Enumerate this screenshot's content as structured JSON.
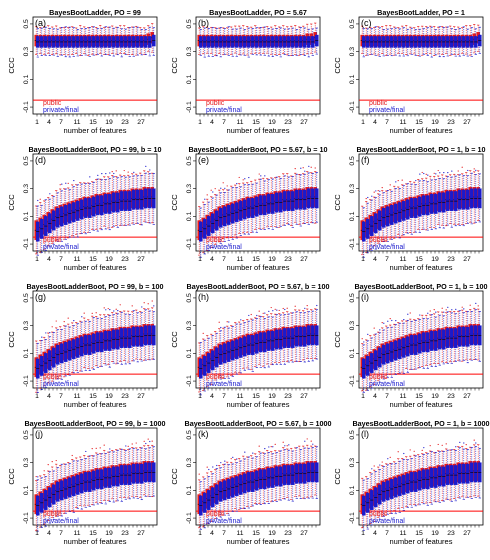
{
  "colors": {
    "public": "#e41a1c",
    "private": "#1a1acc",
    "reference_line": "#ff0000",
    "axis": "#000000"
  },
  "shared": {
    "xlabel": "number of features",
    "ylabel": "CCC",
    "x_ticks": [
      "1",
      "4",
      "7",
      "11",
      "15",
      "19",
      "23",
      "27"
    ],
    "y_ticks": [
      "-0.1",
      "0.1",
      "0.3",
      "0.5"
    ],
    "legend": [
      "public",
      "private/final"
    ]
  },
  "chart_data": [
    {
      "type": "box",
      "panel": "(a)",
      "title": "BayesBootLadder, PO = 99",
      "xlim": [
        1,
        30
      ],
      "ylim": [
        -0.15,
        0.55
      ],
      "reference_line_y": -0.05,
      "series": [
        {
          "name": "public",
          "median_by_features": [
            0.38,
            0.38,
            0.38,
            0.38,
            0.38,
            0.38,
            0.38,
            0.38,
            0.38,
            0.38,
            0.38,
            0.38,
            0.38,
            0.38,
            0.38,
            0.38,
            0.38,
            0.38,
            0.38,
            0.38,
            0.38,
            0.38,
            0.38,
            0.38,
            0.38,
            0.38,
            0.38,
            0.38,
            0.39,
            0.4
          ]
        },
        {
          "name": "private/final",
          "median_by_features": [
            0.37,
            0.37,
            0.37,
            0.37,
            0.37,
            0.37,
            0.37,
            0.37,
            0.37,
            0.37,
            0.37,
            0.37,
            0.37,
            0.37,
            0.37,
            0.37,
            0.37,
            0.37,
            0.37,
            0.37,
            0.37,
            0.37,
            0.37,
            0.37,
            0.37,
            0.37,
            0.37,
            0.37,
            0.37,
            0.38
          ]
        }
      ]
    },
    {
      "type": "box",
      "panel": "(b)",
      "title": "BayesBootLadder, PO = 5.67",
      "xlim": [
        1,
        30
      ],
      "ylim": [
        -0.15,
        0.55
      ],
      "reference_line_y": -0.05,
      "series": [
        {
          "name": "public",
          "median_by_features": [
            0.38,
            0.38,
            0.38,
            0.38,
            0.38,
            0.38,
            0.38,
            0.38,
            0.38,
            0.38,
            0.38,
            0.38,
            0.38,
            0.38,
            0.38,
            0.38,
            0.38,
            0.38,
            0.38,
            0.38,
            0.38,
            0.38,
            0.38,
            0.38,
            0.38,
            0.38,
            0.38,
            0.39,
            0.39,
            0.4
          ]
        },
        {
          "name": "private/final",
          "median_by_features": [
            0.37,
            0.37,
            0.37,
            0.37,
            0.37,
            0.37,
            0.37,
            0.37,
            0.37,
            0.37,
            0.37,
            0.37,
            0.37,
            0.37,
            0.37,
            0.37,
            0.37,
            0.37,
            0.37,
            0.37,
            0.37,
            0.37,
            0.37,
            0.37,
            0.37,
            0.37,
            0.37,
            0.37,
            0.37,
            0.38
          ]
        }
      ]
    },
    {
      "type": "box",
      "panel": "(c)",
      "title": "BayesBootLadder, PO = 1",
      "xlim": [
        1,
        30
      ],
      "ylim": [
        -0.15,
        0.55
      ],
      "reference_line_y": -0.05,
      "series": [
        {
          "name": "public",
          "median_by_features": [
            0.38,
            0.38,
            0.38,
            0.38,
            0.38,
            0.38,
            0.38,
            0.38,
            0.38,
            0.38,
            0.38,
            0.38,
            0.38,
            0.38,
            0.38,
            0.38,
            0.38,
            0.38,
            0.38,
            0.38,
            0.38,
            0.38,
            0.38,
            0.38,
            0.38,
            0.38,
            0.38,
            0.38,
            0.39,
            0.4
          ]
        },
        {
          "name": "private/final",
          "median_by_features": [
            0.37,
            0.37,
            0.37,
            0.37,
            0.37,
            0.37,
            0.37,
            0.37,
            0.37,
            0.37,
            0.37,
            0.37,
            0.37,
            0.37,
            0.37,
            0.37,
            0.37,
            0.37,
            0.37,
            0.37,
            0.37,
            0.37,
            0.37,
            0.37,
            0.37,
            0.37,
            0.37,
            0.37,
            0.37,
            0.38
          ]
        }
      ]
    },
    {
      "type": "box",
      "panel": "(d)",
      "title": "BayesBootLadderBoot, PO = 99, b = 10",
      "xlim": [
        1,
        30
      ],
      "ylim": [
        -0.15,
        0.55
      ],
      "reference_line_y": -0.05,
      "series": [
        {
          "name": "public",
          "median_by_features": [
            0.0,
            0.02,
            0.04,
            0.06,
            0.08,
            0.1,
            0.11,
            0.12,
            0.13,
            0.14,
            0.15,
            0.16,
            0.17,
            0.17,
            0.18,
            0.19,
            0.19,
            0.2,
            0.2,
            0.21,
            0.21,
            0.22,
            0.22,
            0.22,
            0.23,
            0.23,
            0.23,
            0.24,
            0.24,
            0.24
          ]
        },
        {
          "name": "private/final",
          "median_by_features": [
            -0.01,
            0.01,
            0.03,
            0.05,
            0.07,
            0.09,
            0.1,
            0.11,
            0.12,
            0.13,
            0.14,
            0.15,
            0.16,
            0.16,
            0.17,
            0.18,
            0.18,
            0.19,
            0.19,
            0.2,
            0.2,
            0.21,
            0.21,
            0.21,
            0.22,
            0.22,
            0.22,
            0.23,
            0.23,
            0.23
          ]
        }
      ]
    },
    {
      "type": "box",
      "panel": "(e)",
      "title": "BayesBootLadderBoot, PO = 5.67, b = 10",
      "xlim": [
        1,
        30
      ],
      "ylim": [
        -0.15,
        0.55
      ],
      "reference_line_y": -0.05,
      "series": [
        {
          "name": "public",
          "median_by_features": [
            0.0,
            0.02,
            0.04,
            0.06,
            0.08,
            0.1,
            0.11,
            0.12,
            0.13,
            0.14,
            0.15,
            0.16,
            0.17,
            0.17,
            0.18,
            0.19,
            0.19,
            0.2,
            0.2,
            0.21,
            0.21,
            0.22,
            0.22,
            0.22,
            0.23,
            0.23,
            0.23,
            0.24,
            0.24,
            0.24
          ]
        },
        {
          "name": "private/final",
          "median_by_features": [
            -0.01,
            0.01,
            0.03,
            0.05,
            0.07,
            0.09,
            0.1,
            0.11,
            0.12,
            0.13,
            0.14,
            0.15,
            0.16,
            0.16,
            0.17,
            0.18,
            0.18,
            0.19,
            0.19,
            0.2,
            0.2,
            0.21,
            0.21,
            0.21,
            0.22,
            0.22,
            0.22,
            0.23,
            0.23,
            0.23
          ]
        }
      ]
    },
    {
      "type": "box",
      "panel": "(f)",
      "title": "BayesBootLadderBoot, PO = 1, b = 10",
      "xlim": [
        1,
        30
      ],
      "ylim": [
        -0.15,
        0.55
      ],
      "reference_line_y": -0.05,
      "series": [
        {
          "name": "public",
          "median_by_features": [
            0.0,
            0.02,
            0.04,
            0.06,
            0.08,
            0.1,
            0.11,
            0.12,
            0.13,
            0.14,
            0.15,
            0.16,
            0.17,
            0.17,
            0.18,
            0.19,
            0.19,
            0.2,
            0.2,
            0.21,
            0.21,
            0.22,
            0.22,
            0.22,
            0.23,
            0.23,
            0.23,
            0.24,
            0.24,
            0.24
          ]
        },
        {
          "name": "private/final",
          "median_by_features": [
            -0.01,
            0.01,
            0.03,
            0.05,
            0.07,
            0.09,
            0.1,
            0.11,
            0.12,
            0.13,
            0.14,
            0.15,
            0.16,
            0.16,
            0.17,
            0.18,
            0.18,
            0.19,
            0.19,
            0.2,
            0.2,
            0.21,
            0.21,
            0.21,
            0.22,
            0.22,
            0.22,
            0.23,
            0.23,
            0.23
          ]
        }
      ]
    },
    {
      "type": "box",
      "panel": "(g)",
      "title": "BayesBootLadderBoot, PO = 99, b = 100",
      "xlim": [
        1,
        30
      ],
      "ylim": [
        -0.15,
        0.55
      ],
      "reference_line_y": -0.05,
      "series": [
        {
          "name": "public",
          "median_by_features": [
            0.0,
            0.02,
            0.04,
            0.06,
            0.08,
            0.1,
            0.11,
            0.12,
            0.13,
            0.14,
            0.15,
            0.16,
            0.17,
            0.17,
            0.18,
            0.19,
            0.19,
            0.2,
            0.2,
            0.21,
            0.21,
            0.22,
            0.22,
            0.22,
            0.23,
            0.23,
            0.23,
            0.24,
            0.24,
            0.24
          ]
        },
        {
          "name": "private/final",
          "median_by_features": [
            -0.01,
            0.01,
            0.03,
            0.05,
            0.07,
            0.09,
            0.1,
            0.11,
            0.12,
            0.13,
            0.14,
            0.15,
            0.16,
            0.16,
            0.17,
            0.18,
            0.18,
            0.19,
            0.19,
            0.2,
            0.2,
            0.21,
            0.21,
            0.21,
            0.22,
            0.22,
            0.22,
            0.23,
            0.23,
            0.23
          ]
        }
      ]
    },
    {
      "type": "box",
      "panel": "(h)",
      "title": "BayesBootLadderBoot, PO = 5.67, b = 100",
      "xlim": [
        1,
        30
      ],
      "ylim": [
        -0.15,
        0.55
      ],
      "reference_line_y": -0.05,
      "series": [
        {
          "name": "public",
          "median_by_features": [
            0.0,
            0.02,
            0.04,
            0.06,
            0.08,
            0.1,
            0.11,
            0.12,
            0.13,
            0.14,
            0.15,
            0.16,
            0.17,
            0.17,
            0.18,
            0.19,
            0.19,
            0.2,
            0.2,
            0.21,
            0.21,
            0.22,
            0.22,
            0.22,
            0.23,
            0.23,
            0.23,
            0.24,
            0.24,
            0.24
          ]
        },
        {
          "name": "private/final",
          "median_by_features": [
            -0.01,
            0.01,
            0.03,
            0.05,
            0.07,
            0.09,
            0.1,
            0.11,
            0.12,
            0.13,
            0.14,
            0.15,
            0.16,
            0.16,
            0.17,
            0.18,
            0.18,
            0.19,
            0.19,
            0.2,
            0.2,
            0.21,
            0.21,
            0.21,
            0.22,
            0.22,
            0.22,
            0.23,
            0.23,
            0.23
          ]
        }
      ]
    },
    {
      "type": "box",
      "panel": "(i)",
      "title": "BayesBootLadderBoot, PO = 1, b = 100",
      "xlim": [
        1,
        30
      ],
      "ylim": [
        -0.15,
        0.55
      ],
      "reference_line_y": -0.05,
      "series": [
        {
          "name": "public",
          "median_by_features": [
            0.0,
            0.02,
            0.04,
            0.06,
            0.08,
            0.1,
            0.11,
            0.12,
            0.13,
            0.14,
            0.15,
            0.16,
            0.17,
            0.17,
            0.18,
            0.19,
            0.19,
            0.2,
            0.2,
            0.21,
            0.21,
            0.22,
            0.22,
            0.22,
            0.23,
            0.23,
            0.23,
            0.24,
            0.24,
            0.24
          ]
        },
        {
          "name": "private/final",
          "median_by_features": [
            -0.01,
            0.01,
            0.03,
            0.05,
            0.07,
            0.09,
            0.1,
            0.11,
            0.12,
            0.13,
            0.14,
            0.15,
            0.16,
            0.16,
            0.17,
            0.18,
            0.18,
            0.19,
            0.19,
            0.2,
            0.2,
            0.21,
            0.21,
            0.21,
            0.22,
            0.22,
            0.22,
            0.23,
            0.23,
            0.23
          ]
        }
      ]
    },
    {
      "type": "box",
      "panel": "(j)",
      "title": "BayesBootLadderBoot, PO = 99, b = 1000",
      "xlim": [
        1,
        30
      ],
      "ylim": [
        -0.15,
        0.55
      ],
      "reference_line_y": -0.05,
      "series": [
        {
          "name": "public",
          "median_by_features": [
            0.0,
            0.02,
            0.04,
            0.06,
            0.08,
            0.1,
            0.11,
            0.12,
            0.13,
            0.14,
            0.15,
            0.16,
            0.17,
            0.17,
            0.18,
            0.19,
            0.19,
            0.2,
            0.2,
            0.21,
            0.21,
            0.22,
            0.22,
            0.22,
            0.23,
            0.23,
            0.23,
            0.24,
            0.24,
            0.24
          ]
        },
        {
          "name": "private/final",
          "median_by_features": [
            -0.01,
            0.01,
            0.03,
            0.05,
            0.07,
            0.09,
            0.1,
            0.11,
            0.12,
            0.13,
            0.14,
            0.15,
            0.16,
            0.16,
            0.17,
            0.18,
            0.18,
            0.19,
            0.19,
            0.2,
            0.2,
            0.21,
            0.21,
            0.21,
            0.22,
            0.22,
            0.22,
            0.23,
            0.23,
            0.23
          ]
        }
      ]
    },
    {
      "type": "box",
      "panel": "(k)",
      "title": "BayesBootLadderBoot, PO = 5.67, b = 1000",
      "xlim": [
        1,
        30
      ],
      "ylim": [
        -0.15,
        0.55
      ],
      "reference_line_y": -0.05,
      "series": [
        {
          "name": "public",
          "median_by_features": [
            0.0,
            0.02,
            0.04,
            0.06,
            0.08,
            0.1,
            0.11,
            0.12,
            0.13,
            0.14,
            0.15,
            0.16,
            0.17,
            0.17,
            0.18,
            0.19,
            0.19,
            0.2,
            0.2,
            0.21,
            0.21,
            0.22,
            0.22,
            0.22,
            0.23,
            0.23,
            0.23,
            0.24,
            0.24,
            0.24
          ]
        },
        {
          "name": "private/final",
          "median_by_features": [
            -0.01,
            0.01,
            0.03,
            0.05,
            0.07,
            0.09,
            0.1,
            0.11,
            0.12,
            0.13,
            0.14,
            0.15,
            0.16,
            0.16,
            0.17,
            0.18,
            0.18,
            0.19,
            0.19,
            0.2,
            0.2,
            0.21,
            0.21,
            0.21,
            0.22,
            0.22,
            0.22,
            0.23,
            0.23,
            0.23
          ]
        }
      ]
    },
    {
      "type": "box",
      "panel": "(l)",
      "title": "BayesBootLadderBoot, PO = 1, b = 1000",
      "xlim": [
        1,
        30
      ],
      "ylim": [
        -0.15,
        0.55
      ],
      "reference_line_y": -0.05,
      "series": [
        {
          "name": "public",
          "median_by_features": [
            0.0,
            0.02,
            0.04,
            0.06,
            0.08,
            0.1,
            0.11,
            0.12,
            0.13,
            0.14,
            0.15,
            0.16,
            0.17,
            0.17,
            0.18,
            0.19,
            0.19,
            0.2,
            0.2,
            0.21,
            0.21,
            0.22,
            0.22,
            0.22,
            0.23,
            0.23,
            0.23,
            0.24,
            0.24,
            0.24
          ]
        },
        {
          "name": "private/final",
          "median_by_features": [
            -0.01,
            0.01,
            0.03,
            0.05,
            0.07,
            0.09,
            0.1,
            0.11,
            0.12,
            0.13,
            0.14,
            0.15,
            0.16,
            0.16,
            0.17,
            0.18,
            0.18,
            0.19,
            0.19,
            0.2,
            0.2,
            0.21,
            0.21,
            0.21,
            0.22,
            0.22,
            0.22,
            0.23,
            0.23,
            0.23
          ]
        }
      ]
    }
  ]
}
